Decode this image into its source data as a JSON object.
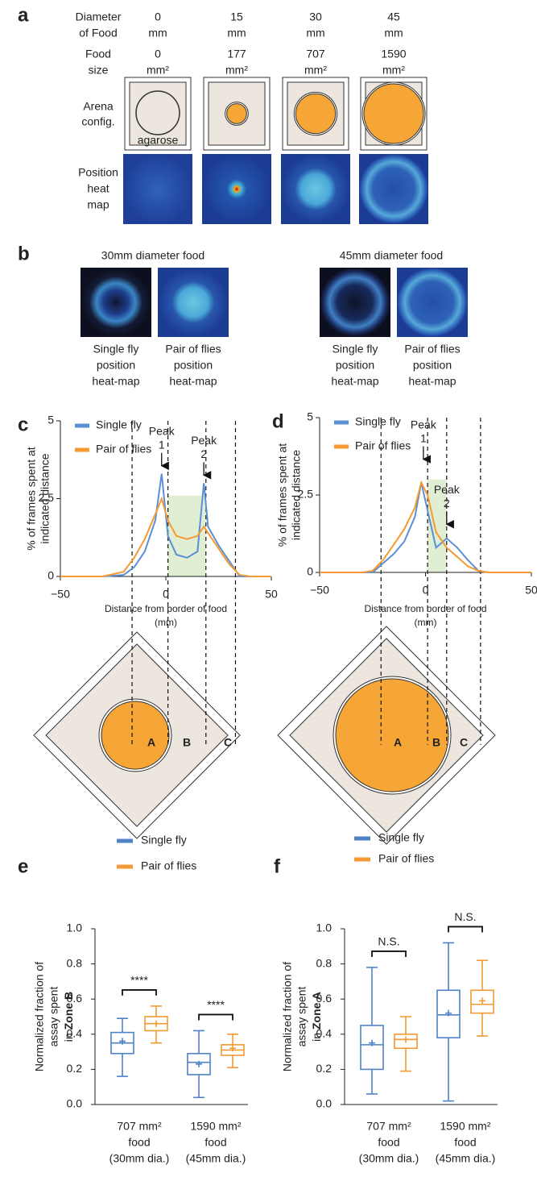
{
  "figure": {
    "panel_a": {
      "letter": "a",
      "row_labels": [
        [
          "Diameter",
          "of Food"
        ],
        [
          "Food",
          "size"
        ],
        [
          "Arena",
          "config."
        ],
        [
          "Position",
          "heat",
          "map"
        ]
      ],
      "columns": [
        {
          "diameter": 0,
          "diameter_unit": "mm",
          "size": 0,
          "size_unit": "mm²"
        },
        {
          "diameter": 15,
          "diameter_unit": "mm",
          "size": 177,
          "size_unit": "mm²"
        },
        {
          "diameter": 30,
          "diameter_unit": "mm",
          "size": 707,
          "size_unit": "mm²"
        },
        {
          "diameter": 45,
          "diameter_unit": "mm",
          "size": 1590,
          "size_unit": "mm²"
        }
      ],
      "agarose": "agarose"
    },
    "panel_b": {
      "letter": "b",
      "groups": [
        {
          "title": "30mm diameter food",
          "captions": [
            [
              "Single fly",
              "position",
              "heat-map"
            ],
            [
              "Pair of flies",
              "position",
              "heat-map"
            ]
          ]
        },
        {
          "title": "45mm diameter food",
          "captions": [
            [
              "Single fly",
              "position",
              "heat-map"
            ],
            [
              "Pair of flies",
              "position",
              "heat-map"
            ]
          ]
        }
      ]
    },
    "arena_diagrams": [
      {
        "zones": [
          "A",
          "B",
          "C"
        ]
      },
      {
        "zones": [
          "A",
          "B",
          "C"
        ]
      }
    ]
  },
  "chart_data": [
    {
      "type": "line",
      "panel_label": "c",
      "xlabel": [
        "Distance from border of food",
        "(mm)"
      ],
      "ylabel": [
        "% of frames spent at",
        "indicated distance"
      ],
      "x": [
        -50,
        -40,
        -30,
        -20,
        -15,
        -10,
        -5,
        -2,
        1,
        5,
        10,
        15,
        18,
        20,
        25,
        30,
        35,
        40,
        50
      ],
      "series": [
        {
          "name": "Single fly",
          "color": "#5b8fd6",
          "values": [
            0,
            0,
            0,
            0.05,
            0.3,
            0.8,
            1.8,
            3.3,
            1.3,
            0.7,
            0.6,
            0.8,
            3.0,
            1.6,
            1.0,
            0.5,
            0,
            0,
            0
          ]
        },
        {
          "name": "Pair of flies",
          "color": "#f59a32",
          "values": [
            0,
            0,
            0,
            0.15,
            0.6,
            1.2,
            2.0,
            2.5,
            1.8,
            1.3,
            1.2,
            1.3,
            1.6,
            1.4,
            0.9,
            0.4,
            0.05,
            0,
            0
          ]
        }
      ],
      "xlim": [
        -50,
        50
      ],
      "xticks": [
        {
          "value": -50,
          "label": "−50"
        },
        0,
        50
      ],
      "ylim": [
        0,
        5
      ],
      "yticks": [
        0,
        2.5,
        5
      ],
      "legend": "upper left",
      "shaded_region": {
        "x": [
          1,
          19
        ],
        "y": [
          0,
          2.6
        ],
        "color": "#d8ebc8"
      },
      "guide_x": [
        -16,
        1,
        19,
        33
      ],
      "annotations": [
        {
          "text": [
            "Peak",
            "1"
          ],
          "x": -2,
          "y": 3.4
        },
        {
          "text": [
            "Peak",
            "2"
          ],
          "x": 18,
          "y": 3.1
        }
      ]
    },
    {
      "type": "line",
      "panel_label": "d",
      "xlabel": [
        "Distance from border of food",
        "(mm)"
      ],
      "ylabel": [
        "% of frames spent at",
        "indicated distance"
      ],
      "x": [
        -50,
        -40,
        -30,
        -25,
        -20,
        -15,
        -10,
        -5,
        -2,
        1,
        5,
        10,
        15,
        20,
        25,
        30,
        40,
        50
      ],
      "series": [
        {
          "name": "Single fly",
          "color": "#5b8fd6",
          "values": [
            0,
            0,
            0,
            0,
            0.3,
            0.6,
            1.0,
            1.8,
            2.9,
            2.0,
            0.8,
            1.1,
            0.8,
            0.4,
            0.05,
            0,
            0,
            0
          ]
        },
        {
          "name": "Pair of flies",
          "color": "#f59a32",
          "values": [
            0,
            0,
            0,
            0.05,
            0.4,
            0.9,
            1.4,
            2.1,
            2.9,
            2.5,
            1.3,
            0.8,
            0.5,
            0.2,
            0.05,
            0,
            0,
            0
          ]
        }
      ],
      "xlim": [
        -50,
        50
      ],
      "xticks": [
        {
          "value": -50,
          "label": "−50"
        },
        0,
        50
      ],
      "ylim": [
        0,
        5
      ],
      "yticks": [
        0,
        2.5,
        5
      ],
      "legend": "upper left",
      "shaded_region": {
        "x": [
          1,
          10
        ],
        "y": [
          0,
          3.0
        ],
        "color": "#d8ebc8"
      },
      "guide_x": [
        -21,
        1,
        10,
        26
      ],
      "annotations": [
        {
          "text": [
            "Peak",
            "1"
          ],
          "x": -1,
          "y": 3.5
        },
        {
          "text": [
            "Peak",
            "2"
          ],
          "x": 10,
          "y": 1.4
        }
      ]
    },
    {
      "type": "box",
      "panel_label": "e",
      "ylabel": [
        "Normalized fraction of",
        "assay  spent",
        "in"
      ],
      "ylabel_bold": "Zone B",
      "categories": [
        [
          "707 mm²",
          "food",
          "(30mm dia.)"
        ],
        [
          "1590 mm²",
          "food",
          "(45mm dia.)"
        ]
      ],
      "series": [
        {
          "name": "Single fly",
          "color": "#4f82c6",
          "values": [
            {
              "min": 0.16,
              "q1": 0.29,
              "median": 0.35,
              "q3": 0.41,
              "max": 0.49,
              "mean": 0.36
            },
            {
              "min": 0.04,
              "q1": 0.17,
              "median": 0.24,
              "q3": 0.29,
              "max": 0.42,
              "mean": 0.23
            }
          ]
        },
        {
          "name": "Pair of flies",
          "color": "#f29a33",
          "values": [
            {
              "min": 0.35,
              "q1": 0.42,
              "median": 0.46,
              "q3": 0.5,
              "max": 0.56,
              "mean": 0.46
            },
            {
              "min": 0.21,
              "q1": 0.28,
              "median": 0.31,
              "q3": 0.34,
              "max": 0.4,
              "mean": 0.32
            }
          ]
        }
      ],
      "significance": [
        "****",
        "****"
      ],
      "ylim": [
        0,
        1
      ],
      "yticks": [
        {
          "value": 0,
          "label": "0.0"
        },
        0.2,
        0.4,
        0.6,
        0.8,
        {
          "value": 1,
          "label": "1.0"
        }
      ],
      "legend": "top"
    },
    {
      "type": "box",
      "panel_label": "f",
      "ylabel": [
        "Normalized fraction of",
        "assay  spent",
        "in"
      ],
      "ylabel_bold": "Zone A",
      "categories": [
        [
          "707 mm²",
          "food",
          "(30mm dia.)"
        ],
        [
          "1590 mm²",
          "food",
          "(45mm dia.)"
        ]
      ],
      "series": [
        {
          "name": "Single fly",
          "color": "#4f82c6",
          "values": [
            {
              "min": 0.06,
              "q1": 0.2,
              "median": 0.34,
              "q3": 0.45,
              "max": 0.78,
              "mean": 0.35
            },
            {
              "min": 0.02,
              "q1": 0.38,
              "median": 0.51,
              "q3": 0.65,
              "max": 0.92,
              "mean": 0.52
            }
          ]
        },
        {
          "name": "Pair of flies",
          "color": "#f29a33",
          "values": [
            {
              "min": 0.19,
              "q1": 0.32,
              "median": 0.37,
              "q3": 0.4,
              "max": 0.5,
              "mean": 0.37
            },
            {
              "min": 0.39,
              "q1": 0.52,
              "median": 0.57,
              "q3": 0.65,
              "max": 0.82,
              "mean": 0.59
            }
          ]
        }
      ],
      "significance": [
        "N.S.",
        "N.S."
      ],
      "ylim": [
        0,
        1
      ],
      "yticks": [
        {
          "value": 0,
          "label": "0.0"
        },
        0.2,
        0.4,
        0.6,
        0.8,
        {
          "value": 1,
          "label": "1.0"
        }
      ],
      "legend": "top"
    }
  ]
}
